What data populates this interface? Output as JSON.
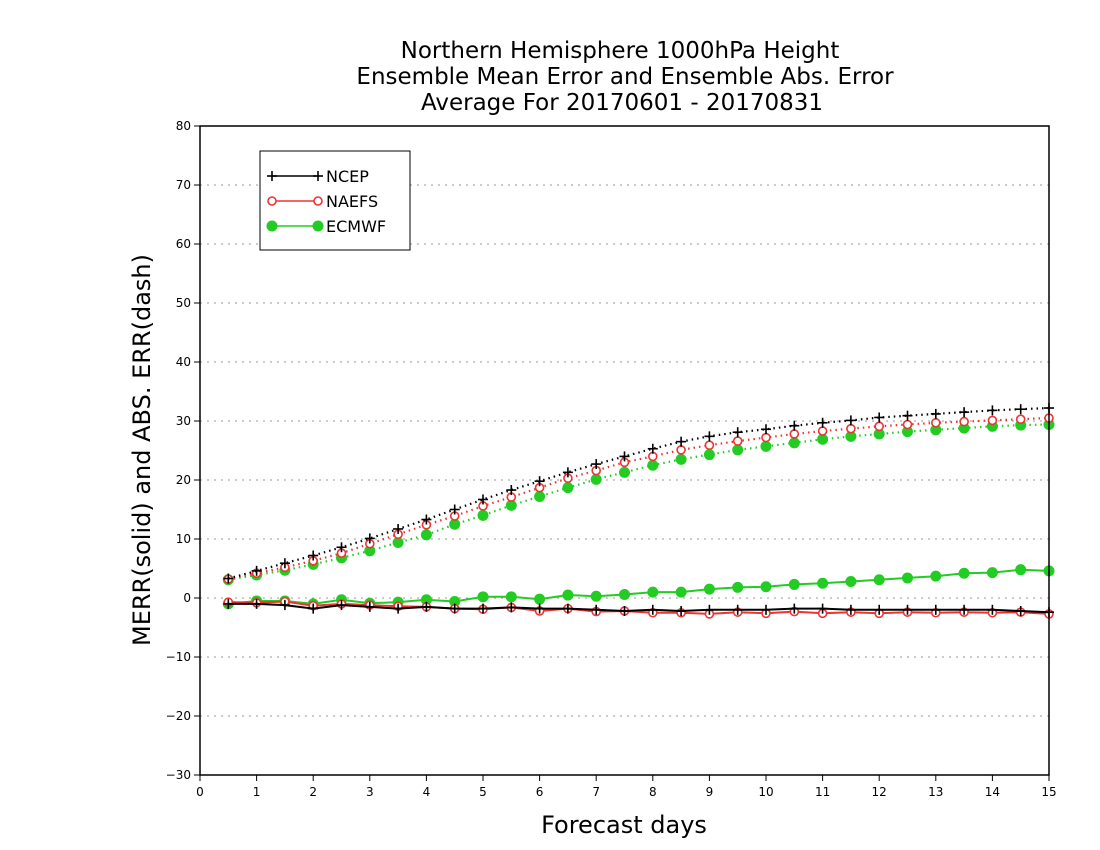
{
  "chart_data": {
    "type": "line",
    "title_lines": [
      "Northern Hemisphere 1000hPa Height",
      "Ensemble Mean Error and Ensemble Abs. Error",
      "Average For 20170601 - 20170831"
    ],
    "xlabel": "Forecast days",
    "ylabel": "MERR(solid) and ABS. ERR(dash)",
    "xlim": [
      0,
      15
    ],
    "ylim": [
      -30,
      80
    ],
    "xticks": [
      "0",
      "1",
      "2",
      "3",
      "4",
      "5",
      "6",
      "7",
      "8",
      "9",
      "10",
      "11",
      "12",
      "13",
      "14",
      "15"
    ],
    "yticks": [
      "−30",
      "−20",
      "−10",
      "0",
      "10",
      "20",
      "30",
      "40",
      "50",
      "60",
      "70",
      "80"
    ],
    "grid": "horizontal dotted",
    "legend_placement": "top-left",
    "x": [
      0.5,
      1,
      1.5,
      2,
      2.5,
      3,
      3.5,
      4,
      4.5,
      5,
      5.5,
      6,
      6.5,
      7,
      7.5,
      8,
      8.5,
      9,
      9.5,
      10,
      10.5,
      11,
      11.5,
      12,
      12.5,
      13,
      13.5,
      14,
      14.5,
      15
    ],
    "series": [
      {
        "name": "NCEP",
        "color": "#000000",
        "marker": "plus",
        "merr": [
          -1,
          -1,
          -1.2,
          -1.8,
          -1.2,
          -1.5,
          -1.8,
          -1.5,
          -1.8,
          -1.8,
          -1.6,
          -1.8,
          -1.8,
          -2,
          -2.2,
          -2,
          -2.2,
          -2,
          -2,
          -2,
          -1.8,
          -1.8,
          -2,
          -2,
          -2,
          -2,
          -2,
          -2,
          -2.2,
          -2.4
        ],
        "abs": [
          3.3,
          4.6,
          5.9,
          7.2,
          8.6,
          10.1,
          11.7,
          13.3,
          15,
          16.7,
          18.3,
          19.8,
          21.3,
          22.7,
          24,
          25.3,
          26.5,
          27.4,
          28.1,
          28.6,
          29.2,
          29.7,
          30.1,
          30.6,
          30.9,
          31.2,
          31.5,
          31.8,
          32,
          32.2
        ]
      },
      {
        "name": "NAEFS",
        "color": "#ee3333",
        "marker": "circle-open",
        "merr": [
          -0.7,
          -0.8,
          -0.6,
          -1.3,
          -1,
          -1.2,
          -1.4,
          -1.5,
          -1.8,
          -1.9,
          -1.6,
          -2.2,
          -1.8,
          -2.3,
          -2.2,
          -2.5,
          -2.5,
          -2.7,
          -2.4,
          -2.6,
          -2.3,
          -2.6,
          -2.4,
          -2.6,
          -2.4,
          -2.5,
          -2.4,
          -2.5,
          -2.4,
          -2.7
        ],
        "abs": [
          3.2,
          4.2,
          5.2,
          6.3,
          7.6,
          9.2,
          10.8,
          12.4,
          13.9,
          15.6,
          17.1,
          18.7,
          20.3,
          21.6,
          23,
          24,
          25.1,
          25.9,
          26.6,
          27.2,
          27.8,
          28.3,
          28.7,
          29.1,
          29.4,
          29.7,
          29.9,
          30.1,
          30.3,
          30.5
        ]
      },
      {
        "name": "ECMWF",
        "color": "#22cc22",
        "marker": "circle-filled",
        "merr": [
          -1,
          -0.5,
          -0.5,
          -1,
          -0.3,
          -0.9,
          -0.7,
          -0.3,
          -0.6,
          0.2,
          0.2,
          -0.2,
          0.5,
          0.3,
          0.6,
          1,
          1,
          1.5,
          1.8,
          1.9,
          2.3,
          2.5,
          2.8,
          3.1,
          3.4,
          3.7,
          4.2,
          4.3,
          4.8,
          4.6
        ],
        "abs": [
          3.1,
          3.9,
          4.7,
          5.7,
          6.8,
          8,
          9.4,
          10.7,
          12.5,
          14,
          15.7,
          17.2,
          18.7,
          20.1,
          21.3,
          22.5,
          23.5,
          24.3,
          25.1,
          25.7,
          26.3,
          26.9,
          27.4,
          27.8,
          28.2,
          28.5,
          28.8,
          29.1,
          29.3,
          29.4
        ]
      }
    ]
  }
}
